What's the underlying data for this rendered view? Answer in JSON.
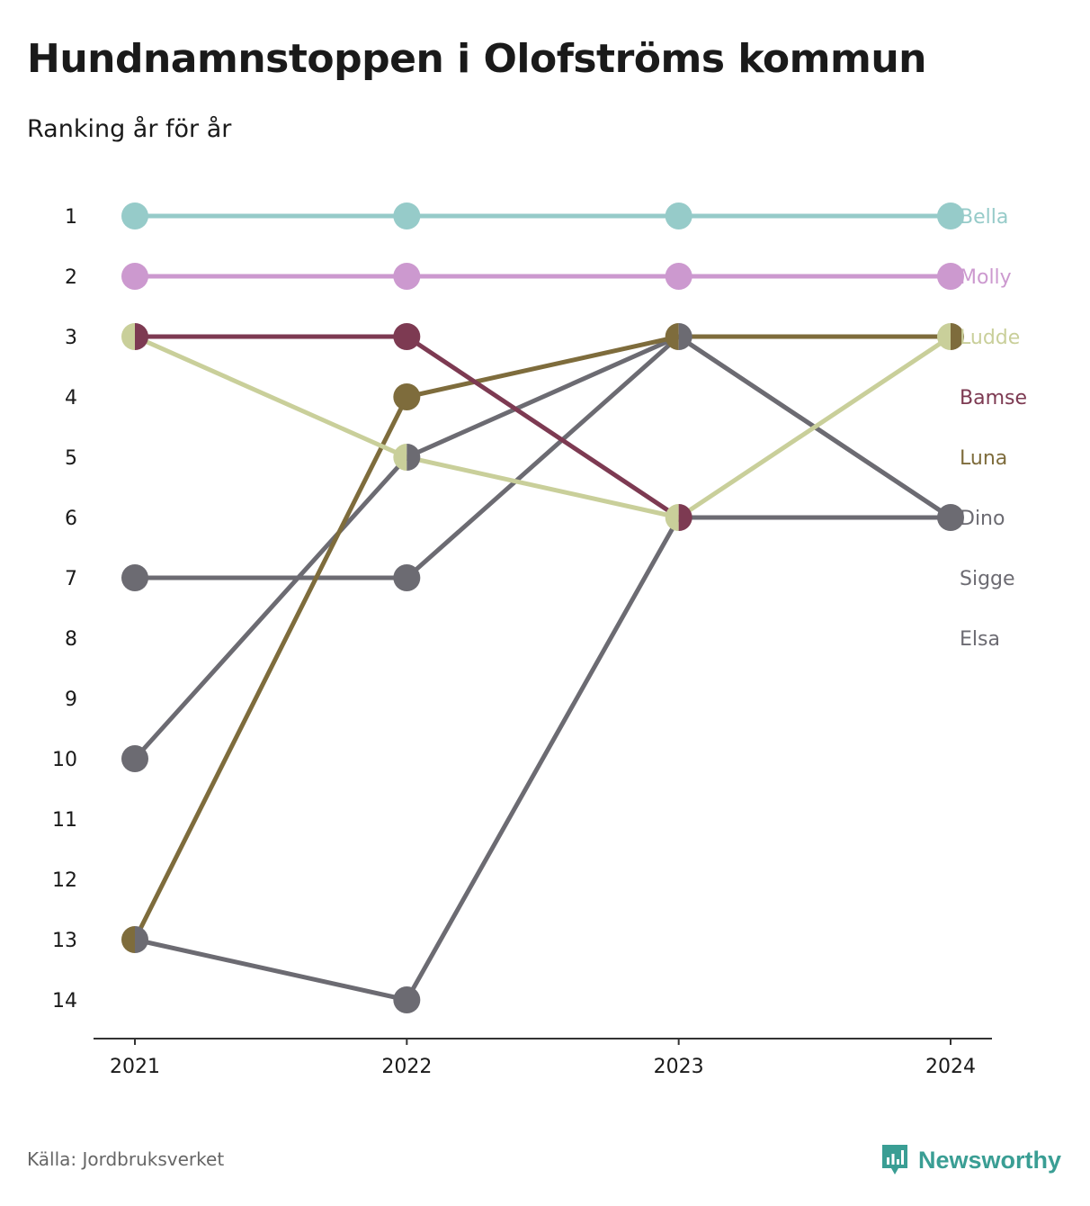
{
  "title": "Hundnamnstoppen i Olofströms kommun",
  "subtitle": "Ranking år för år",
  "source": "Källa: Jordbruksverket",
  "brand": {
    "name": "Newsworthy",
    "color": "#3a9e94",
    "icon": "newsworthy-logo-icon"
  },
  "chart_data": {
    "type": "line",
    "subtype": "bump",
    "categories": [
      "2021",
      "2022",
      "2023",
      "2024"
    ],
    "y_ticks": [
      1,
      2,
      3,
      4,
      5,
      6,
      7,
      8,
      9,
      10,
      11,
      12,
      13,
      14
    ],
    "y_axis_inverted": true,
    "ylim": [
      1,
      14
    ],
    "grid": false,
    "legend": "right, direct labels",
    "series": [
      {
        "name": "Bella",
        "color": "#96cbc9",
        "values": [
          1,
          1,
          1,
          1
        ]
      },
      {
        "name": "Molly",
        "color": "#cc99cf",
        "values": [
          2,
          2,
          2,
          2
        ]
      },
      {
        "name": "Ludde",
        "color": "#c9cf9a",
        "values": [
          3,
          5,
          6,
          3
        ]
      },
      {
        "name": "Bamse",
        "color": "#7d3a52",
        "values": [
          3,
          3,
          6,
          null
        ]
      },
      {
        "name": "Luna",
        "color": "#7e6c3c",
        "values": [
          13,
          4,
          3,
          3
        ]
      },
      {
        "name": "Dino",
        "color": "#6c6b72",
        "values": [
          10,
          5,
          3,
          6
        ]
      },
      {
        "name": "Sigge",
        "color": "#6c6b72",
        "values": [
          7,
          7,
          3,
          6
        ]
      },
      {
        "name": "Elsa",
        "color": "#6c6b72",
        "values": [
          13,
          14,
          6,
          6
        ]
      }
    ]
  }
}
